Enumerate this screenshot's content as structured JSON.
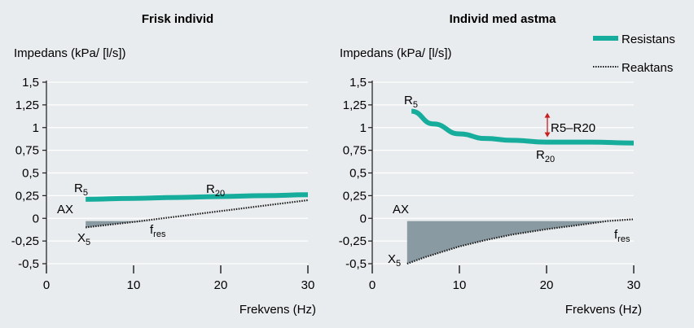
{
  "chart_data": [
    {
      "type": "line",
      "title": "Frisk individ",
      "ylabel": "Impedans (kPa/ [l/s])",
      "xlabel": "Frekvens (Hz)",
      "xlim": [
        0,
        30
      ],
      "ylim": [
        -0.5,
        1.5
      ],
      "xticks": [
        "0",
        "10",
        "20",
        "30"
      ],
      "yticks": [
        "1,5",
        "1,25",
        "1",
        "0,75",
        "0,5",
        "0,25",
        "0",
        "-0,25",
        "-0,5"
      ],
      "series": [
        {
          "name": "Resistans",
          "x": [
            4.5,
            10,
            15,
            20,
            25,
            30
          ],
          "values": [
            0.21,
            0.22,
            0.23,
            0.24,
            0.25,
            0.26
          ]
        },
        {
          "name": "Reaktans",
          "x": [
            4.5,
            10,
            15,
            20,
            25,
            30
          ],
          "values": [
            -0.1,
            -0.04,
            0.02,
            0.08,
            0.14,
            0.2
          ]
        }
      ],
      "ax_area": {
        "label": "AX",
        "x_from": 4.5,
        "x_to": 12,
        "top": -0.03
      },
      "annotations": [
        {
          "text": "R",
          "sub": "5"
        },
        {
          "text": "R",
          "sub": "20"
        },
        {
          "text": "X",
          "sub": "5"
        },
        {
          "text": "f",
          "sub": "res"
        }
      ]
    },
    {
      "type": "line",
      "title": "Individ med astma",
      "ylabel": "Impedans (kPa/ [l/s])",
      "xlabel": "Frekvens (Hz)",
      "xlim": [
        0,
        30
      ],
      "ylim": [
        -0.5,
        1.5
      ],
      "xticks": [
        "0",
        "10",
        "20",
        "30"
      ],
      "yticks": [
        "1,5",
        "1,25",
        "1",
        "0,75",
        "0,5",
        "0,25",
        "0",
        "-0,25",
        "-0,5"
      ],
      "series": [
        {
          "name": "Resistans",
          "x": [
            4.5,
            7,
            10,
            13,
            16,
            20,
            25,
            30
          ],
          "values": [
            1.18,
            1.04,
            0.93,
            0.88,
            0.86,
            0.84,
            0.84,
            0.83
          ]
        },
        {
          "name": "Reaktans",
          "x": [
            4,
            6,
            8,
            10,
            13,
            16,
            20,
            24,
            27,
            30
          ],
          "values": [
            -0.5,
            -0.43,
            -0.37,
            -0.31,
            -0.24,
            -0.18,
            -0.12,
            -0.07,
            -0.03,
            -0.01
          ]
        }
      ],
      "ax_area": {
        "label": "AX",
        "x_from": 4,
        "x_to": 27,
        "top": -0.03
      },
      "diff_marker": {
        "label": "R5–R20",
        "x": 20.5,
        "from": 0.84,
        "to": 1.18
      },
      "annotations": [
        {
          "text": "R",
          "sub": "5"
        },
        {
          "text": "R",
          "sub": "20"
        },
        {
          "text": "X",
          "sub": "5"
        },
        {
          "text": "f",
          "sub": "res"
        }
      ]
    }
  ],
  "legend": {
    "items": [
      {
        "label": "Resistans",
        "style": "solid",
        "color": "#17ad9d"
      },
      {
        "label": "Reaktans",
        "style": "dotted",
        "color": "#1a1a1a"
      }
    ]
  },
  "colors": {
    "resistance": "#17ad9d",
    "area": "#8a9aa3",
    "grid": "#ffffff",
    "diff_arrow": "#c81e1e"
  }
}
